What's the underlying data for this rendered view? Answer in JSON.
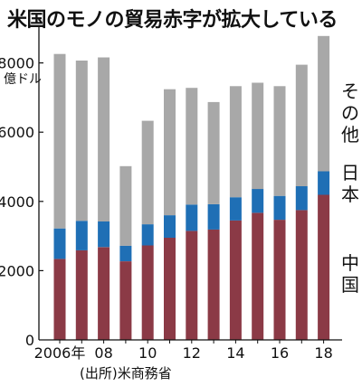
{
  "chart_data": {
    "type": "bar",
    "stacked": true,
    "title": "米国のモノの貿易赤字が拡大している",
    "unit_label": "億ドル",
    "source": "(出所)米商務省",
    "categories": [
      "2006年",
      "",
      "08",
      "",
      "10",
      "",
      "12",
      "",
      "14",
      "",
      "16",
      "",
      "18"
    ],
    "ylim": [
      0,
      8800
    ],
    "yticks": [
      {
        "value": 0,
        "label": "0"
      },
      {
        "value": 2000,
        "label": "2000"
      },
      {
        "value": 4000,
        "label": "4000"
      },
      {
        "value": 6000,
        "label": "6000"
      },
      {
        "value": 8000,
        "label": "8000"
      }
    ],
    "series": [
      {
        "name": "中国",
        "color": "#8b3a46",
        "values": [
          2340,
          2590,
          2680,
          2270,
          2730,
          2950,
          3150,
          3190,
          3450,
          3670,
          3470,
          3750,
          4190
        ]
      },
      {
        "name": "日本",
        "color": "#1f6fb5",
        "values": [
          880,
          850,
          740,
          450,
          610,
          650,
          760,
          730,
          670,
          690,
          690,
          690,
          680
        ]
      },
      {
        "name": "その他",
        "color": "#a8a8a8",
        "values": [
          5040,
          4630,
          4740,
          2300,
          2990,
          3640,
          3370,
          2950,
          3210,
          3070,
          3170,
          3510,
          3910
        ]
      }
    ],
    "grid": false,
    "legend_position": "right, beside bars"
  }
}
